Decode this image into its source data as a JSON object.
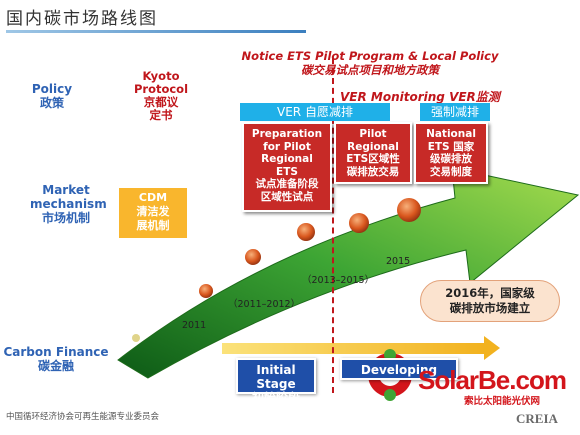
{
  "title": "国内碳市场路线图",
  "rows": {
    "policy": {
      "en": "Policy",
      "zh": "政策"
    },
    "market": {
      "en1": "Market",
      "en2": "mechanism",
      "zh": "市场机制"
    },
    "finance": {
      "en": "Carbon Finance",
      "zh": "碳金融"
    }
  },
  "kyoto": {
    "l1": "Kyoto",
    "l2": "Protocol",
    "l3": "京都议",
    "l4": "定书"
  },
  "notice": {
    "l1": "Notice ETS Pilot Program & Local Policy",
    "l2": "碳交易试点项目和地方政策"
  },
  "ver_voluntary": "VER 自愿减排",
  "ver_monitoring": "VER Monitoring VER监测",
  "mandatory": "强制减排",
  "boxes": [
    {
      "l1": "Preparation",
      "l2": "for Pilot",
      "l3": "Regional",
      "l4": "ETS",
      "l5": "试点准备阶段",
      "l6": "区域性试点"
    },
    {
      "l1": "Pilot",
      "l2": "Regional",
      "l3": "ETS区域性",
      "l4": "碳排放交易"
    },
    {
      "l1": "National",
      "l2": "ETS 国家",
      "l3": "级碳排放",
      "l4": "交易制度"
    }
  ],
  "cdm": {
    "l1": "CDM",
    "l2": "清洁发",
    "l3": "展机制"
  },
  "years": {
    "y2011": "2011",
    "y2011_2012": "（2011–2012）",
    "y2013_2015": "（2013–2015）",
    "y2015": "2015"
  },
  "callout": {
    "l1": "2016年，国家级",
    "l2": "碳排放市场建立"
  },
  "stages": {
    "initial_en": "Initial Stage",
    "initial_zh": "初始阶段",
    "dev": "Developing Stage"
  },
  "footer": "中国循环经济协会可再生能源专业委员会",
  "watermark": {
    "brand": "SolarBe.com",
    "sub": "索比太阳能光伏网",
    "creia": "CREIA"
  },
  "colors": {
    "red": "#c72a27",
    "cyan": "#1fb0e8",
    "green": "#2f8f2a",
    "orange": "#f9b62d",
    "navy": "#1f4fa8"
  }
}
